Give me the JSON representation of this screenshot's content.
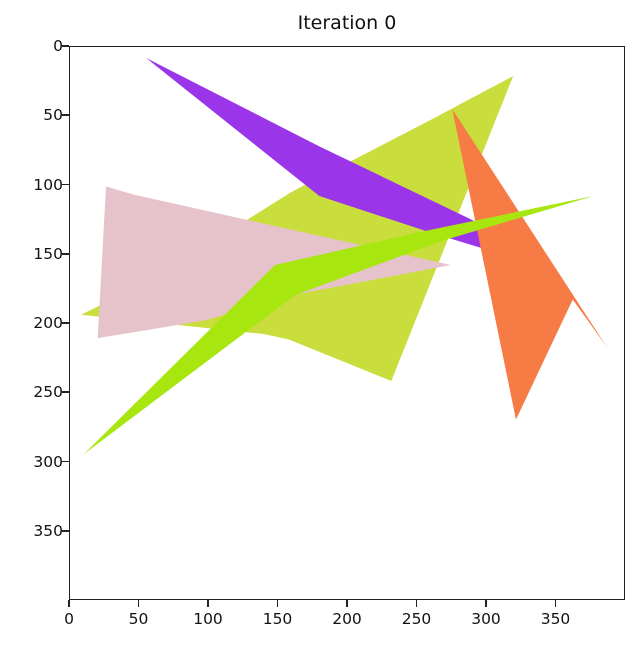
{
  "chart_data": {
    "type": "image-plot",
    "title": "Iteration 0",
    "xlabel": "",
    "ylabel": "",
    "xlim": [
      0,
      400
    ],
    "ylim": [
      400,
      0
    ],
    "y_inverted": true,
    "grid": false,
    "legend": null,
    "x_ticks": [
      0,
      50,
      100,
      150,
      200,
      250,
      300,
      350
    ],
    "y_ticks": [
      0,
      50,
      100,
      150,
      200,
      250,
      300,
      350
    ],
    "background": "#ffffff",
    "polygons": [
      {
        "name": "yellow-green-polygon",
        "color": "#c9de3c",
        "points": [
          [
            8,
            194
          ],
          [
            140,
            208
          ],
          [
            158,
            212
          ],
          [
            232,
            242
          ],
          [
            320,
            21
          ],
          [
            262,
            52
          ],
          [
            160,
            105
          ],
          [
            60,
            168
          ]
        ]
      },
      {
        "name": "pink-polygon",
        "color": "#e6c3ca",
        "points": [
          [
            26,
            101
          ],
          [
            46,
            107
          ],
          [
            275,
            158
          ],
          [
            160,
            180
          ],
          [
            98,
            198
          ],
          [
            20,
            211
          ]
        ]
      },
      {
        "name": "purple-polygon",
        "color": "#9b35ea",
        "points": [
          [
            55,
            8
          ],
          [
            180,
            108
          ],
          [
            262,
            135
          ],
          [
            318,
            152
          ],
          [
            300,
            130
          ],
          [
            180,
            72
          ]
        ]
      },
      {
        "name": "orange-polygon",
        "color": "#f77b45",
        "points": [
          [
            276,
            45
          ],
          [
            388,
            218
          ],
          [
            363,
            183
          ],
          [
            322,
            270
          ]
        ]
      },
      {
        "name": "lime-polygon",
        "color": "#a8e60f",
        "points": [
          [
            10,
            295
          ],
          [
            148,
            158
          ],
          [
            258,
            133
          ],
          [
            378,
            108
          ],
          [
            270,
            140
          ],
          [
            162,
            180
          ]
        ]
      }
    ]
  }
}
